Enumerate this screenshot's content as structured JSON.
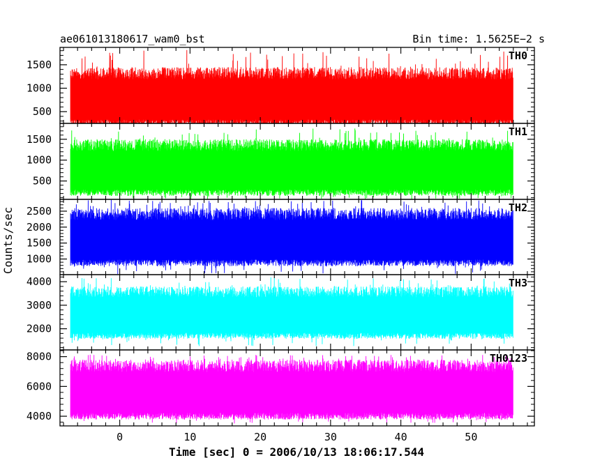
{
  "chart_data": {
    "type": "line",
    "title": "ae061013180617_wam0_bst",
    "subtitle": "Bin time: 1.5625E−2 s",
    "xlabel": "Time [sec] 0 = 2006/10/13 18:06:17.544",
    "ylabel": "Counts/sec",
    "xlim": [
      -8.5,
      59
    ],
    "data_range_x": [
      -7.0,
      56.0
    ],
    "x_ticks": [
      0,
      10,
      20,
      30,
      40,
      50
    ],
    "x_tick_labels": [
      "0",
      "10",
      "20",
      "30",
      "40",
      "50"
    ],
    "grid": false,
    "panels": [
      {
        "name": "TH0",
        "color": "#ff0000",
        "ylim": [
          250,
          1870
        ],
        "y_ticks": [
          500,
          1000,
          1500
        ],
        "y_tick_labels": [
          "500",
          "1000",
          "1500"
        ],
        "typical_range": [
          260,
          1450
        ],
        "peak_max": 1830,
        "floor_min": 160
      },
      {
        "name": "TH1",
        "color": "#00ff00",
        "ylim": [
          60,
          1880
        ],
        "y_ticks": [
          500,
          1000,
          1500
        ],
        "y_tick_labels": [
          "500",
          "1000",
          "1500"
        ],
        "typical_range": [
          220,
          1500
        ],
        "peak_max": 1760,
        "floor_min": 60
      },
      {
        "name": "TH2",
        "color": "#0000ff",
        "ylim": [
          510,
          2870
        ],
        "y_ticks": [
          1000,
          1500,
          2000,
          2500
        ],
        "y_tick_labels": [
          "1000",
          "1500",
          "2000",
          "2500"
        ],
        "typical_range": [
          880,
          2600
        ],
        "peak_max": 2870,
        "floor_min": 510
      },
      {
        "name": "TH3",
        "color": "#00ffff",
        "ylim": [
          1100,
          4300
        ],
        "y_ticks": [
          2000,
          3000,
          4000
        ],
        "y_tick_labels": [
          "2000",
          "3000",
          "4000"
        ],
        "typical_range": [
          1700,
          3800
        ],
        "peak_max": 4200,
        "floor_min": 1250
      },
      {
        "name": "TH0123",
        "color": "#ff00ff",
        "ylim": [
          3350,
          8450
        ],
        "y_ticks": [
          4000,
          6000,
          8000
        ],
        "y_tick_labels": [
          "4000",
          "6000",
          "8000"
        ],
        "typical_range": [
          4000,
          7800
        ],
        "peak_max": 8200,
        "floor_min": 3500
      }
    ]
  }
}
